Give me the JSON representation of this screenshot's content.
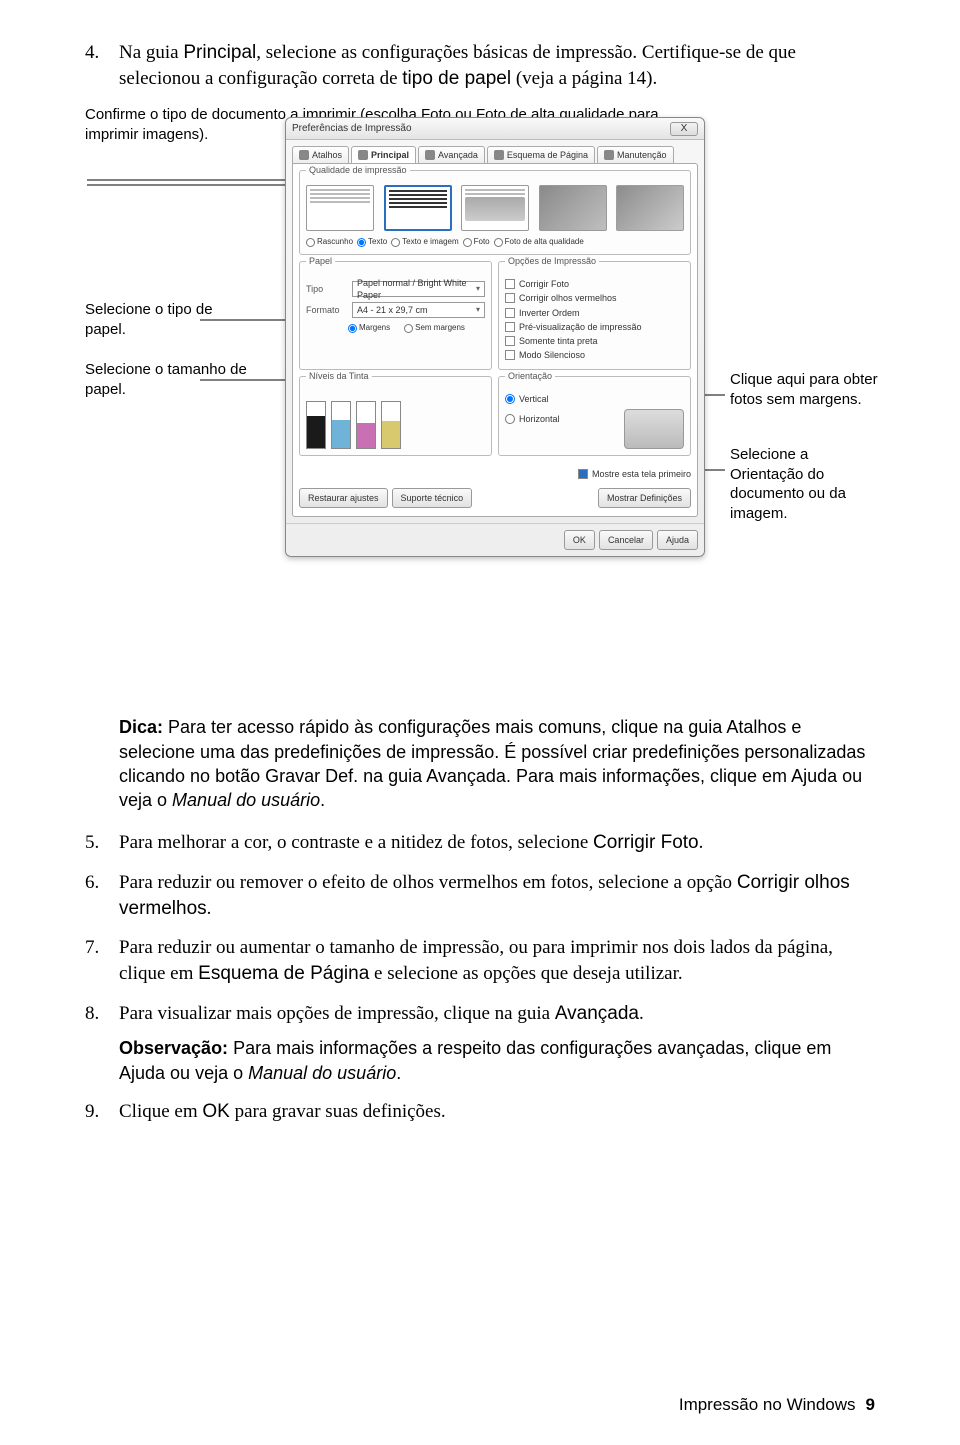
{
  "step4": {
    "num": "4.",
    "text_a": "Na guia ",
    "text_b": "Principal",
    "text_c": ", selecione as configurações básicas de impressão. Certifique-se de que selecionou a configuração correta de ",
    "text_d": "tipo de papel",
    "text_e": " (veja a página 14)."
  },
  "callouts": {
    "confirm": "Confirme o tipo de documento a imprimir (escolha Foto ou Foto de alta qualidade para imprimir imagens).",
    "paper_type": "Selecione o tipo de papel.",
    "paper_size": "Selecione o tamanho de papel.",
    "borderless": "Clique aqui para obter fotos sem margens.",
    "orientation_a": "Selecione a ",
    "orientation_b": "Orientação",
    "orientation_c": " do documento ou da imagem."
  },
  "dialog": {
    "title": "Preferências de Impressão",
    "close": "X",
    "tabs": {
      "atalhos": "Atalhos",
      "principal": "Principal",
      "avancada": "Avançada",
      "esquema": "Esquema de Página",
      "manutencao": "Manutenção"
    },
    "groups": {
      "quality": "Qualidade de impressão",
      "paper": "Papel",
      "options": "Opções de Impressão",
      "ink": "Níveis da Tinta",
      "orient": "Orientação"
    },
    "radios": {
      "rascunho": "Rascunho",
      "texto": "Texto",
      "textoimg": "Texto e imagem",
      "foto": "Foto",
      "fotohq": "Foto de alta qualidade"
    },
    "paper": {
      "tipo_lbl": "Tipo",
      "tipo_val": "Papel normal / Bright White Paper",
      "formato_lbl": "Formato",
      "formato_val": "A4 - 21 x 29,7 cm",
      "margens": "Margens",
      "sem_margens": "Sem margens"
    },
    "options": {
      "corrigir_foto": "Corrigir Foto",
      "corrigir_olhos": "Corrigir olhos vermelhos",
      "inverter": "Inverter Ordem",
      "previsualizar": "Pré-visualização de impressão",
      "tinta_preta": "Somente tinta preta",
      "silencioso": "Modo Silencioso"
    },
    "orient": {
      "vertical": "Vertical",
      "horizontal": "Horizontal"
    },
    "show_first": "Mostre esta tela primeiro",
    "buttons": {
      "restaurar": "Restaurar ajustes",
      "suporte": "Suporte técnico",
      "mostrar_def": "Mostrar Definições",
      "ok": "OK",
      "cancelar": "Cancelar",
      "ajuda": "Ajuda"
    },
    "ink_colors": [
      "#1a1a1a",
      "#6fb3d8",
      "#c96fb3",
      "#d8c96f"
    ],
    "ink_levels": [
      70,
      62,
      55,
      58
    ]
  },
  "tip": {
    "label": "Dica:",
    "a": " Para ter acesso rápido às configurações mais comuns, clique na guia ",
    "b": "Atalhos",
    "c": " e selecione uma das predefinições de impressão. É possível criar predefinições personalizadas clicando no botão ",
    "d": "Gravar Def.",
    "e": " na guia ",
    "f": "Avançada",
    "g": ". Para mais informações, clique em ",
    "h": "Ajuda",
    "i": " ou veja o ",
    "j": "Manual do usuário",
    "k": "."
  },
  "step5": {
    "num": "5.",
    "a": "Para melhorar a cor, o contraste e a nitidez de fotos, selecione ",
    "b": "Corrigir Foto",
    "c": "."
  },
  "step6": {
    "num": "6.",
    "a": "Para reduzir ou remover o efeito de olhos vermelhos em fotos, selecione a opção ",
    "b": "Corrigir olhos vermelhos",
    "c": "."
  },
  "step7": {
    "num": "7.",
    "a": "Para reduzir ou aumentar o tamanho de impressão, ou para imprimir nos dois lados da página, clique em ",
    "b": "Esquema de Página",
    "c": " e selecione as opções que deseja utilizar."
  },
  "step8": {
    "num": "8.",
    "a": "Para visualizar mais opções de impressão, clique na guia ",
    "b": "Avançada",
    "c": ".",
    "note_label": "Observação:",
    "note_a": " Para mais informações a respeito das configurações avançadas, clique em ",
    "note_b": "Ajuda",
    "note_c": " ou veja o ",
    "note_d": "Manual do usuário",
    "note_e": "."
  },
  "step9": {
    "num": "9.",
    "a": "Clique em ",
    "b": "OK",
    "c": " para gravar suas definições."
  },
  "footer": {
    "title": "Impressão no Windows",
    "page": "9"
  }
}
